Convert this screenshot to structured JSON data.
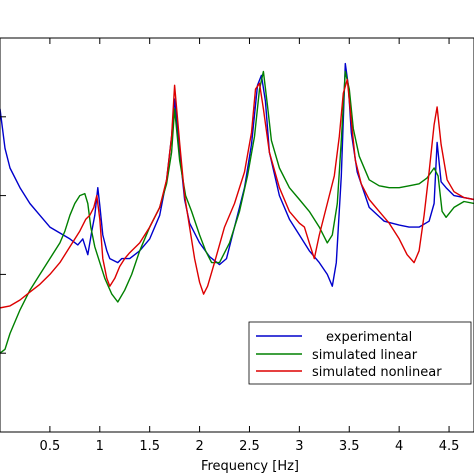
{
  "chart_data": {
    "type": "line",
    "title": "",
    "xlabel": "Frequency [Hz]",
    "ylabel": "",
    "xlim": [
      0,
      4.75
    ],
    "ylim": [
      0,
      1
    ],
    "x_ticks": [
      0.5,
      1,
      1.5,
      2,
      2.5,
      3,
      3.5,
      4,
      4.5
    ],
    "x_tick_labels": [
      "0.5",
      "1",
      "1.5",
      "2",
      "2.5",
      "3",
      "3.5",
      "4",
      "4.5"
    ],
    "grid": false,
    "legend_position": "lower-right",
    "series": [
      {
        "name": "experimental",
        "color": "#0000cc",
        "points": [
          [
            0,
            0.82
          ],
          [
            0.05,
            0.72
          ],
          [
            0.1,
            0.67
          ],
          [
            0.2,
            0.62
          ],
          [
            0.3,
            0.58
          ],
          [
            0.4,
            0.55
          ],
          [
            0.5,
            0.52
          ],
          [
            0.6,
            0.505
          ],
          [
            0.7,
            0.49
          ],
          [
            0.78,
            0.475
          ],
          [
            0.83,
            0.49
          ],
          [
            0.88,
            0.45
          ],
          [
            0.92,
            0.51
          ],
          [
            0.95,
            0.55
          ],
          [
            0.98,
            0.62
          ],
          [
            1.0,
            0.575
          ],
          [
            1.03,
            0.5
          ],
          [
            1.07,
            0.46
          ],
          [
            1.1,
            0.44
          ],
          [
            1.18,
            0.43
          ],
          [
            1.22,
            0.44
          ],
          [
            1.3,
            0.44
          ],
          [
            1.4,
            0.46
          ],
          [
            1.5,
            0.49
          ],
          [
            1.6,
            0.55
          ],
          [
            1.67,
            0.64
          ],
          [
            1.72,
            0.75
          ],
          [
            1.75,
            0.845
          ],
          [
            1.8,
            0.715
          ],
          [
            1.85,
            0.59
          ],
          [
            1.9,
            0.53
          ],
          [
            2.0,
            0.48
          ],
          [
            2.1,
            0.445
          ],
          [
            2.2,
            0.425
          ],
          [
            2.27,
            0.44
          ],
          [
            2.35,
            0.52
          ],
          [
            2.45,
            0.62
          ],
          [
            2.52,
            0.73
          ],
          [
            2.58,
            0.88
          ],
          [
            2.62,
            0.905
          ],
          [
            2.66,
            0.84
          ],
          [
            2.7,
            0.71
          ],
          [
            2.8,
            0.6
          ],
          [
            2.9,
            0.54
          ],
          [
            3.0,
            0.5
          ],
          [
            3.1,
            0.46
          ],
          [
            3.2,
            0.43
          ],
          [
            3.28,
            0.4
          ],
          [
            3.33,
            0.37
          ],
          [
            3.37,
            0.43
          ],
          [
            3.42,
            0.65
          ],
          [
            3.46,
            0.935
          ],
          [
            3.49,
            0.88
          ],
          [
            3.52,
            0.76
          ],
          [
            3.58,
            0.66
          ],
          [
            3.7,
            0.57
          ],
          [
            3.85,
            0.535
          ],
          [
            4.0,
            0.525
          ],
          [
            4.1,
            0.52
          ],
          [
            4.2,
            0.52
          ],
          [
            4.3,
            0.535
          ],
          [
            4.35,
            0.58
          ],
          [
            4.38,
            0.735
          ],
          [
            4.42,
            0.635
          ],
          [
            4.47,
            0.62
          ],
          [
            4.55,
            0.6
          ],
          [
            4.65,
            0.595
          ],
          [
            4.75,
            0.59
          ]
        ]
      },
      {
        "name": "simulated linear",
        "color": "#008000",
        "points": [
          [
            0,
            0.2
          ],
          [
            0.05,
            0.21
          ],
          [
            0.1,
            0.25
          ],
          [
            0.2,
            0.31
          ],
          [
            0.3,
            0.36
          ],
          [
            0.4,
            0.4
          ],
          [
            0.5,
            0.44
          ],
          [
            0.6,
            0.48
          ],
          [
            0.65,
            0.51
          ],
          [
            0.7,
            0.55
          ],
          [
            0.75,
            0.58
          ],
          [
            0.8,
            0.6
          ],
          [
            0.85,
            0.605
          ],
          [
            0.88,
            0.58
          ],
          [
            0.91,
            0.52
          ],
          [
            0.95,
            0.47
          ],
          [
            1.0,
            0.43
          ],
          [
            1.05,
            0.39
          ],
          [
            1.12,
            0.35
          ],
          [
            1.18,
            0.33
          ],
          [
            1.25,
            0.36
          ],
          [
            1.32,
            0.4
          ],
          [
            1.4,
            0.46
          ],
          [
            1.5,
            0.52
          ],
          [
            1.6,
            0.57
          ],
          [
            1.67,
            0.63
          ],
          [
            1.72,
            0.71
          ],
          [
            1.75,
            0.82
          ],
          [
            1.8,
            0.69
          ],
          [
            1.86,
            0.6
          ],
          [
            1.92,
            0.56
          ],
          [
            2.0,
            0.5
          ],
          [
            2.06,
            0.46
          ],
          [
            2.12,
            0.43
          ],
          [
            2.2,
            0.43
          ],
          [
            2.3,
            0.48
          ],
          [
            2.4,
            0.56
          ],
          [
            2.48,
            0.65
          ],
          [
            2.55,
            0.75
          ],
          [
            2.6,
            0.87
          ],
          [
            2.64,
            0.915
          ],
          [
            2.68,
            0.83
          ],
          [
            2.72,
            0.74
          ],
          [
            2.8,
            0.67
          ],
          [
            2.9,
            0.62
          ],
          [
            3.0,
            0.59
          ],
          [
            3.1,
            0.56
          ],
          [
            3.2,
            0.52
          ],
          [
            3.28,
            0.48
          ],
          [
            3.33,
            0.5
          ],
          [
            3.38,
            0.58
          ],
          [
            3.42,
            0.74
          ],
          [
            3.46,
            0.915
          ],
          [
            3.5,
            0.87
          ],
          [
            3.54,
            0.77
          ],
          [
            3.6,
            0.7
          ],
          [
            3.7,
            0.64
          ],
          [
            3.8,
            0.625
          ],
          [
            3.9,
            0.62
          ],
          [
            4.0,
            0.62
          ],
          [
            4.1,
            0.625
          ],
          [
            4.2,
            0.63
          ],
          [
            4.28,
            0.645
          ],
          [
            4.35,
            0.67
          ],
          [
            4.39,
            0.65
          ],
          [
            4.43,
            0.56
          ],
          [
            4.47,
            0.545
          ],
          [
            4.55,
            0.57
          ],
          [
            4.65,
            0.585
          ],
          [
            4.75,
            0.58
          ]
        ]
      },
      {
        "name": "simulated nonlinear",
        "color": "#dd0000",
        "points": [
          [
            0,
            0.315
          ],
          [
            0.1,
            0.32
          ],
          [
            0.2,
            0.335
          ],
          [
            0.3,
            0.355
          ],
          [
            0.4,
            0.375
          ],
          [
            0.5,
            0.4
          ],
          [
            0.6,
            0.43
          ],
          [
            0.7,
            0.47
          ],
          [
            0.8,
            0.51
          ],
          [
            0.86,
            0.54
          ],
          [
            0.9,
            0.55
          ],
          [
            0.94,
            0.57
          ],
          [
            0.97,
            0.6
          ],
          [
            1.0,
            0.54
          ],
          [
            1.03,
            0.44
          ],
          [
            1.07,
            0.39
          ],
          [
            1.1,
            0.37
          ],
          [
            1.15,
            0.39
          ],
          [
            1.2,
            0.42
          ],
          [
            1.25,
            0.44
          ],
          [
            1.3,
            0.455
          ],
          [
            1.4,
            0.48
          ],
          [
            1.5,
            0.52
          ],
          [
            1.6,
            0.57
          ],
          [
            1.67,
            0.64
          ],
          [
            1.72,
            0.75
          ],
          [
            1.75,
            0.88
          ],
          [
            1.8,
            0.735
          ],
          [
            1.85,
            0.6
          ],
          [
            1.9,
            0.52
          ],
          [
            1.95,
            0.44
          ],
          [
            2.0,
            0.38
          ],
          [
            2.04,
            0.35
          ],
          [
            2.08,
            0.37
          ],
          [
            2.15,
            0.43
          ],
          [
            2.25,
            0.52
          ],
          [
            2.35,
            0.58
          ],
          [
            2.45,
            0.66
          ],
          [
            2.52,
            0.76
          ],
          [
            2.56,
            0.87
          ],
          [
            2.6,
            0.885
          ],
          [
            2.64,
            0.82
          ],
          [
            2.7,
            0.71
          ],
          [
            2.8,
            0.62
          ],
          [
            2.9,
            0.56
          ],
          [
            3.0,
            0.53
          ],
          [
            3.05,
            0.52
          ],
          [
            3.1,
            0.48
          ],
          [
            3.15,
            0.44
          ],
          [
            3.2,
            0.5
          ],
          [
            3.28,
            0.58
          ],
          [
            3.35,
            0.65
          ],
          [
            3.4,
            0.75
          ],
          [
            3.44,
            0.86
          ],
          [
            3.48,
            0.895
          ],
          [
            3.52,
            0.79
          ],
          [
            3.56,
            0.69
          ],
          [
            3.62,
            0.63
          ],
          [
            3.7,
            0.59
          ],
          [
            3.8,
            0.56
          ],
          [
            3.9,
            0.53
          ],
          [
            4.0,
            0.49
          ],
          [
            4.08,
            0.45
          ],
          [
            4.15,
            0.43
          ],
          [
            4.2,
            0.46
          ],
          [
            4.25,
            0.55
          ],
          [
            4.3,
            0.66
          ],
          [
            4.35,
            0.78
          ],
          [
            4.38,
            0.825
          ],
          [
            4.42,
            0.73
          ],
          [
            4.48,
            0.64
          ],
          [
            4.55,
            0.61
          ],
          [
            4.65,
            0.595
          ],
          [
            4.75,
            0.59
          ]
        ]
      }
    ]
  }
}
